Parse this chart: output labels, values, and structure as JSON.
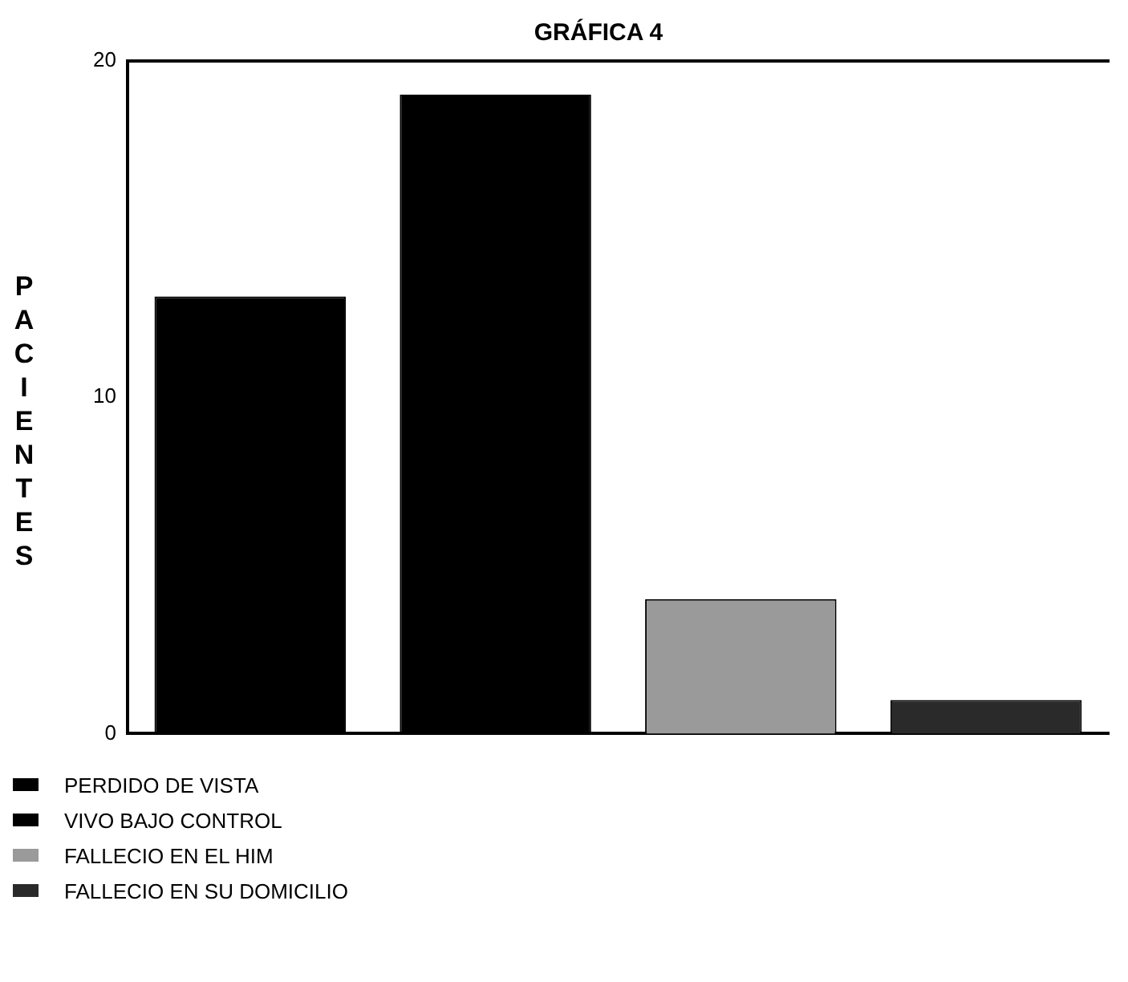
{
  "chart_data": {
    "type": "bar",
    "title": "GRÁFICA 4",
    "ylabel": "PACIENTES",
    "categories": [
      null,
      null,
      null,
      null
    ],
    "series": [
      {
        "name": "PERDIDO DE VISTA",
        "color": "#000000",
        "values": [
          13,
          null,
          null,
          null
        ]
      },
      {
        "name": "VIVO BAJO CONTROL",
        "color": "#000000",
        "values": [
          null,
          19,
          null,
          null
        ]
      },
      {
        "name": "FALLECIO EN EL HIM",
        "color": "#9a9a9a",
        "values": [
          null,
          null,
          4,
          null
        ]
      },
      {
        "name": "FALLECIO EN SU DOMICILIO",
        "color": "#2a2a2a",
        "values": [
          null,
          null,
          null,
          1
        ]
      }
    ],
    "ylim": [
      0,
      20
    ],
    "yticks": [
      0,
      10,
      20
    ],
    "grid": false,
    "legend": "bottom"
  }
}
